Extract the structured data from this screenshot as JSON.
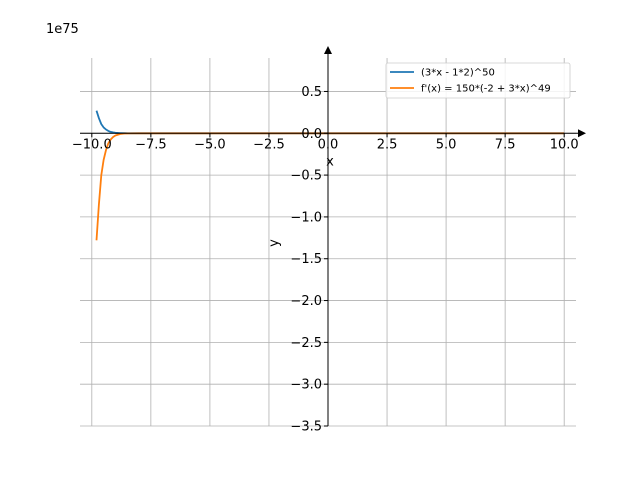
{
  "chart_data": {
    "type": "line",
    "offset_text": "1e75",
    "xlabel": "x",
    "ylabel": "y",
    "xlim": [
      -10.5,
      10.5
    ],
    "ylim": [
      -3.5,
      0.9
    ],
    "grid": true,
    "legend_position": "top-right",
    "x_ticks": [
      -10,
      -7.5,
      -5,
      -2.5,
      0,
      2.5,
      5,
      7.5,
      10
    ],
    "x_tick_labels": [
      "−10.0",
      "−7.5",
      "−5.0",
      "−2.5",
      "0.0",
      "2.5",
      "5.0",
      "7.5",
      "10.0"
    ],
    "y_ticks": [
      0.5,
      0.0,
      -0.5,
      -1.0,
      -1.5,
      -2.0,
      -2.5,
      -3.0,
      -3.5
    ],
    "y_tick_labels": [
      "0.5",
      "0.0",
      "−0.5",
      "−1.0",
      "−1.5",
      "−2.0",
      "−2.5",
      "−3.0",
      "−3.5"
    ],
    "series": [
      {
        "name": "(3*x - 1*2)^50",
        "color": "#1f77b4",
        "x": [
          -9.8,
          -9.7,
          -9.6,
          -9.5,
          -9.4,
          -9.3,
          -9.2,
          -9.1,
          -9.0,
          -8.8,
          -8.6,
          -8.4,
          -8.0,
          -6.0,
          -3.0,
          0.0,
          3.0,
          6.0,
          10.0
        ],
        "y": [
          0.27,
          0.18,
          0.11,
          0.07,
          0.045,
          0.028,
          0.017,
          0.01,
          0.006,
          0.002,
          0.0007,
          0.0002,
          0.0,
          0.0,
          0.0,
          0.0,
          0.0,
          0.0,
          0.0
        ]
      },
      {
        "name": "f'(x) = 150*(-2 + 3*x)^49",
        "color": "#ff7f0e",
        "x": [
          -9.8,
          -9.7,
          -9.6,
          -9.5,
          -9.4,
          -9.3,
          -9.2,
          -9.1,
          -9.0,
          -8.8,
          -8.6,
          -8.4,
          -8.0,
          -6.0,
          -3.0,
          0.0,
          3.0,
          6.0,
          10.0
        ],
        "y": [
          -1.28,
          -0.85,
          -0.5,
          -0.32,
          -0.2,
          -0.12,
          -0.075,
          -0.045,
          -0.027,
          -0.009,
          -0.003,
          -0.001,
          0.0,
          0.0,
          0.0,
          0.0,
          0.0,
          0.0,
          0.0
        ]
      }
    ]
  }
}
